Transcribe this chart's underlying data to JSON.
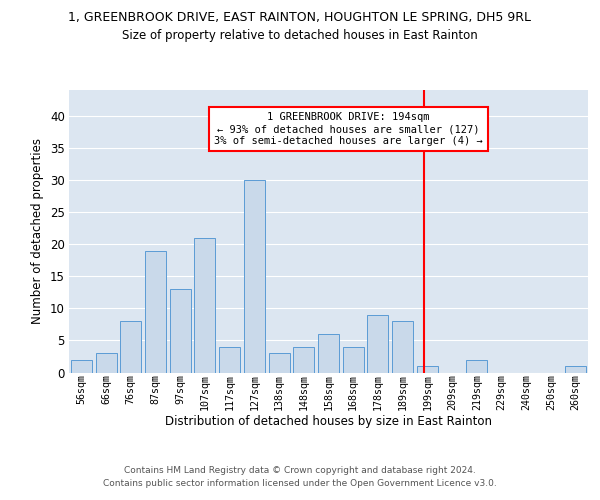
{
  "title1": "1, GREENBROOK DRIVE, EAST RAINTON, HOUGHTON LE SPRING, DH5 9RL",
  "title2": "Size of property relative to detached houses in East Rainton",
  "xlabel": "Distribution of detached houses by size in East Rainton",
  "ylabel": "Number of detached properties",
  "bin_labels": [
    "56sqm",
    "66sqm",
    "76sqm",
    "87sqm",
    "97sqm",
    "107sqm",
    "117sqm",
    "127sqm",
    "138sqm",
    "148sqm",
    "158sqm",
    "168sqm",
    "178sqm",
    "189sqm",
    "199sqm",
    "209sqm",
    "219sqm",
    "229sqm",
    "240sqm",
    "250sqm",
    "260sqm"
  ],
  "bar_heights": [
    2,
    3,
    8,
    19,
    13,
    21,
    4,
    30,
    3,
    4,
    6,
    4,
    9,
    8,
    1,
    0,
    2,
    0,
    0,
    0,
    1
  ],
  "bar_color": "#c9d9ea",
  "bar_edge_color": "#5b9bd5",
  "background_color": "#dce6f1",
  "grid_color": "#ffffff",
  "red_line_x": 13.85,
  "annotation_title": "1 GREENBROOK DRIVE: 194sqm",
  "annotation_line1": "← 93% of detached houses are smaller (127)",
  "annotation_line2": "3% of semi-detached houses are larger (4) →",
  "footer1": "Contains HM Land Registry data © Crown copyright and database right 2024.",
  "footer2": "Contains public sector information licensed under the Open Government Licence v3.0.",
  "ylim": [
    0,
    44
  ],
  "yticks": [
    0,
    5,
    10,
    15,
    20,
    25,
    30,
    35,
    40
  ]
}
